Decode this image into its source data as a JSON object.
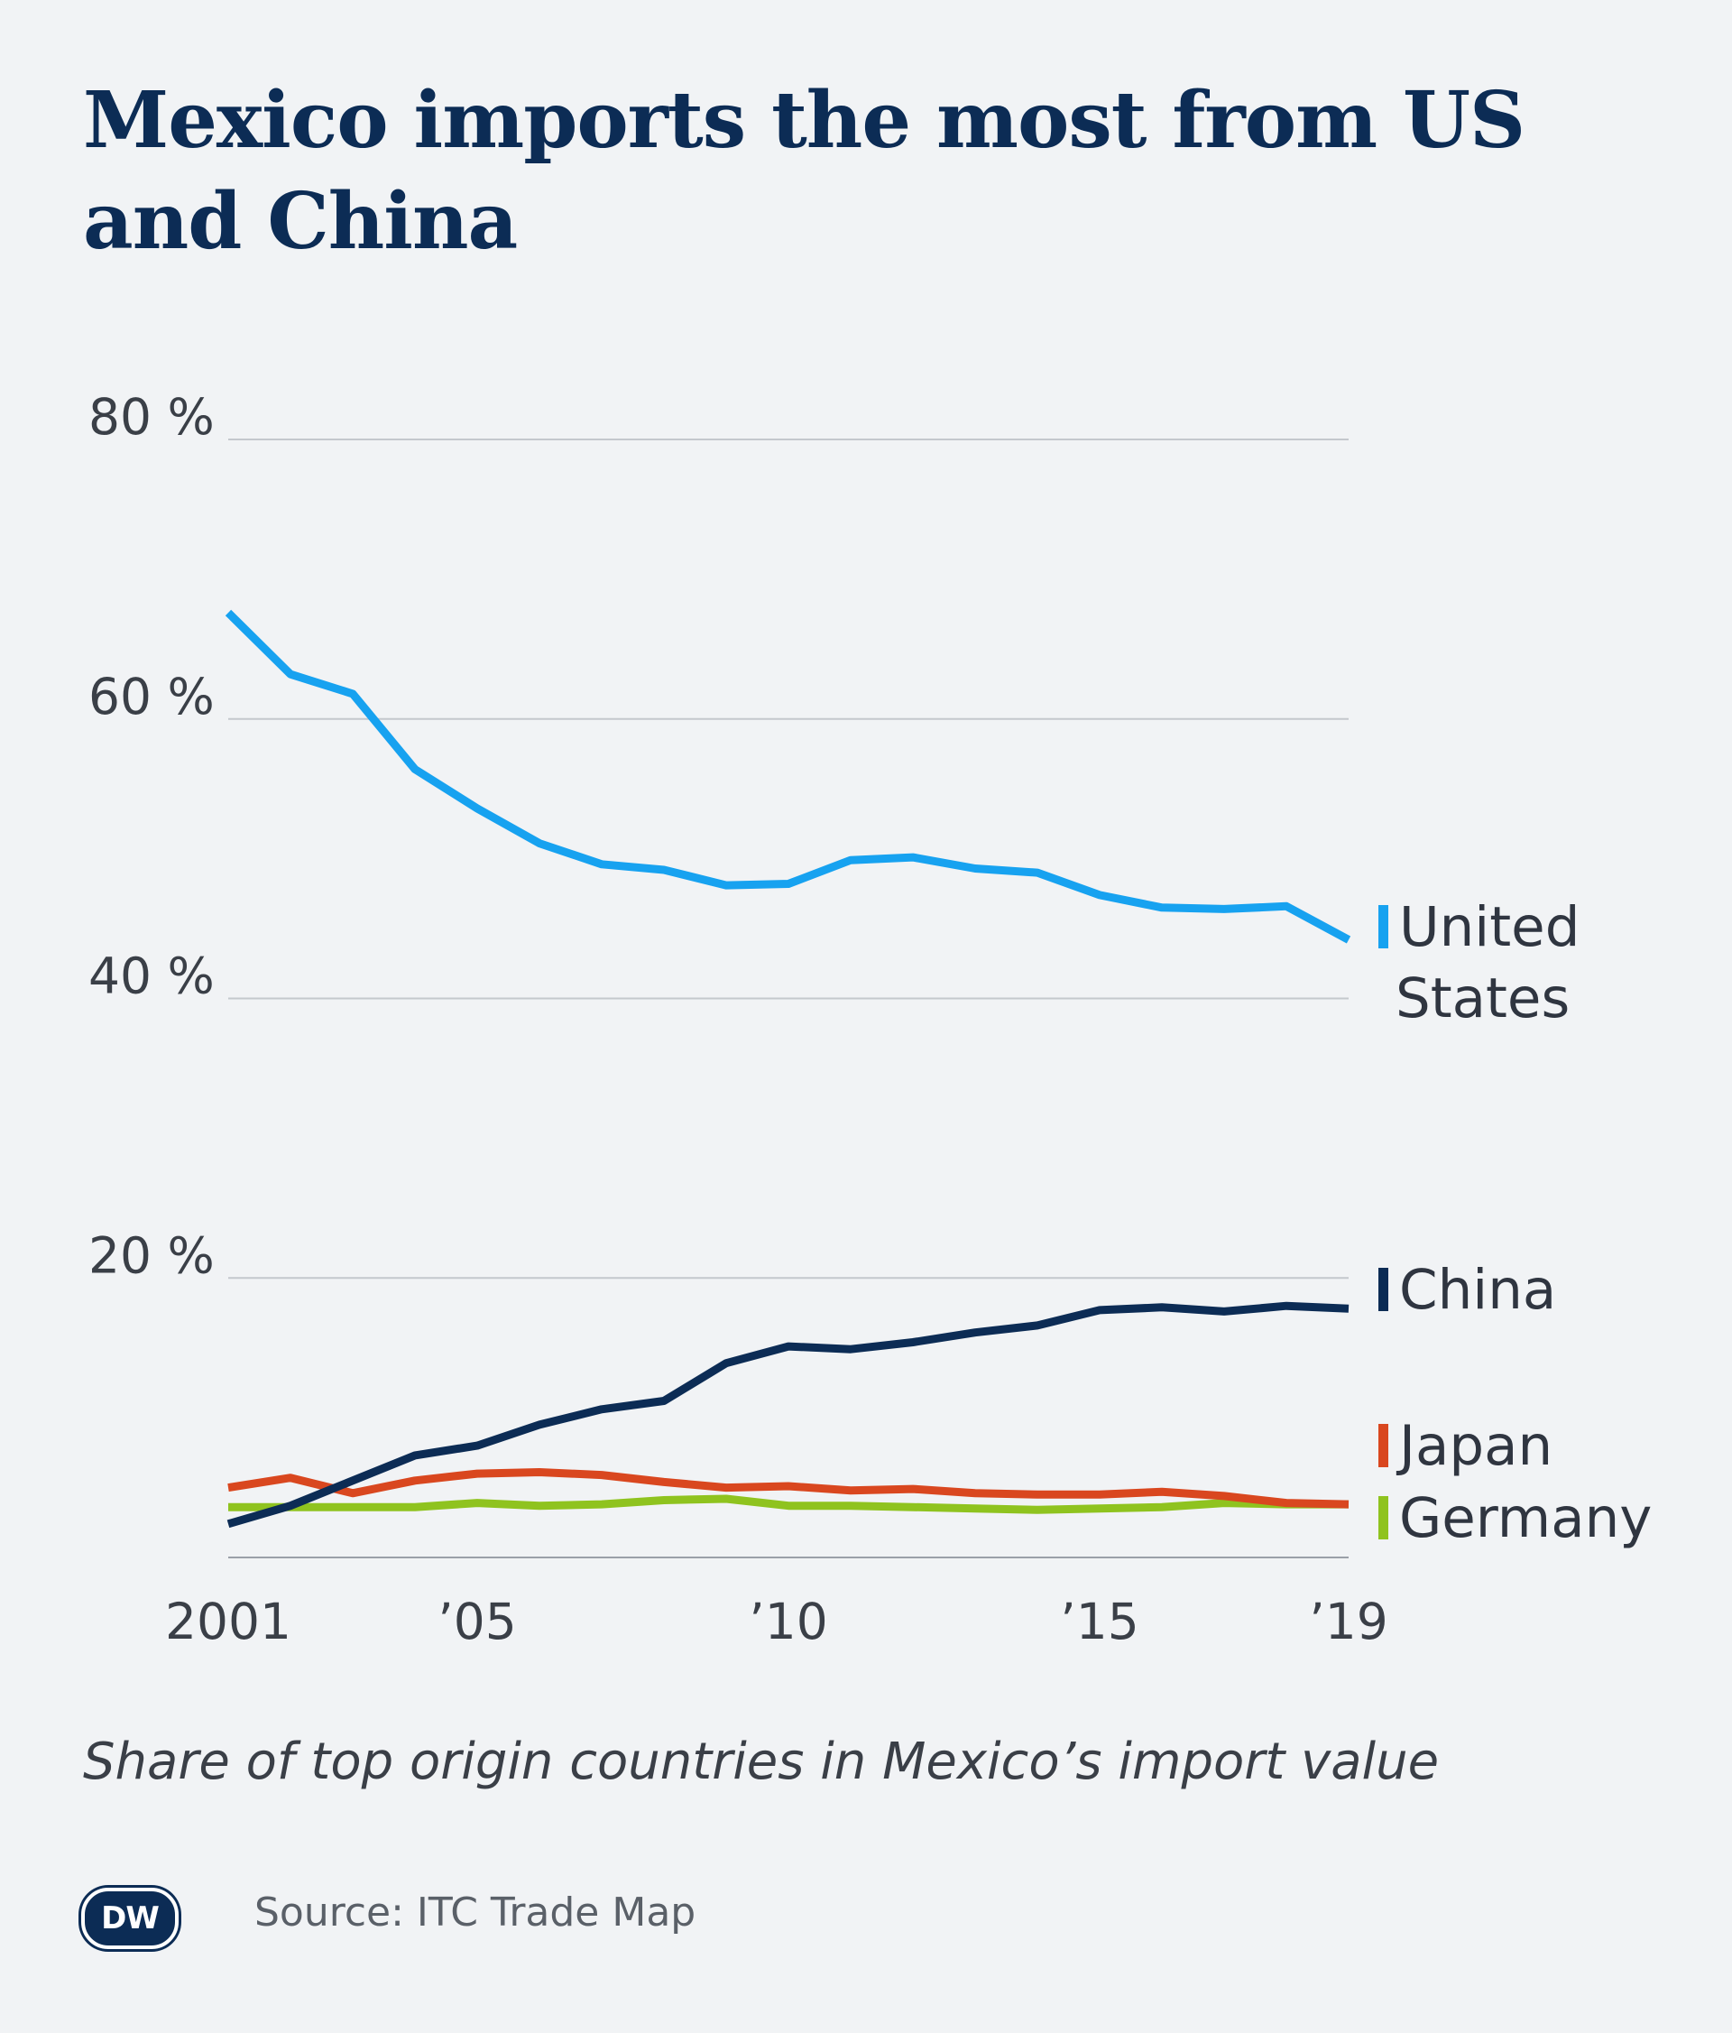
{
  "header": {
    "title": "Mexico imports the most from US and China"
  },
  "footer": {
    "subtitle": "Share of top origin countries in Mexico’s import value",
    "logo_text": "DW",
    "source": "Source: ITC Trade Map"
  },
  "chart_data": {
    "type": "line",
    "title": "Mexico imports the most from US and China",
    "subtitle": "Share of top origin countries in Mexico’s import value",
    "x": [
      2001,
      2002,
      2003,
      2004,
      2005,
      2006,
      2007,
      2008,
      2009,
      2010,
      2011,
      2012,
      2013,
      2014,
      2015,
      2016,
      2017,
      2018,
      2019
    ],
    "x_ticks": [
      {
        "value": 2001,
        "label": "2001"
      },
      {
        "value": 2005,
        "label": "’05"
      },
      {
        "value": 2010,
        "label": "’10"
      },
      {
        "value": 2015,
        "label": "’15"
      },
      {
        "value": 2019,
        "label": "’19"
      }
    ],
    "y_ticks": [
      {
        "value": 20,
        "label": "20 %"
      },
      {
        "value": 40,
        "label": "40 %"
      },
      {
        "value": 60,
        "label": "60 %"
      },
      {
        "value": 80,
        "label": "80 %"
      }
    ],
    "xlim": [
      2001,
      2019
    ],
    "ylim": [
      0,
      80
    ],
    "grid": "horizontal",
    "legend": "inline labels at line ends (right)",
    "series": [
      {
        "name": "United States",
        "label_lines": [
          "United",
          "States"
        ],
        "color": "#17a2f0",
        "values": [
          67.6,
          63.2,
          61.8,
          56.4,
          53.6,
          51.1,
          49.6,
          49.2,
          48.1,
          48.2,
          49.9,
          50.1,
          49.3,
          49.0,
          47.4,
          46.5,
          46.4,
          46.6,
          44.2
        ]
      },
      {
        "name": "China",
        "label_lines": [
          "China"
        ],
        "color": "#0c2c55",
        "values": [
          2.4,
          3.7,
          5.5,
          7.3,
          8.0,
          9.5,
          10.6,
          11.2,
          13.9,
          15.1,
          14.9,
          15.4,
          16.1,
          16.6,
          17.7,
          17.9,
          17.6,
          18.0,
          17.8
        ]
      },
      {
        "name": "Japan",
        "label_lines": [
          "Japan"
        ],
        "color": "#d9471f",
        "values": [
          5.0,
          5.7,
          4.6,
          5.5,
          6.0,
          6.1,
          5.9,
          5.4,
          5.0,
          5.1,
          4.8,
          4.9,
          4.6,
          4.5,
          4.5,
          4.7,
          4.4,
          3.9,
          3.8
        ]
      },
      {
        "name": "Germany",
        "label_lines": [
          "Germany"
        ],
        "color": "#8fc31f",
        "values": [
          3.6,
          3.6,
          3.6,
          3.6,
          3.9,
          3.7,
          3.8,
          4.1,
          4.2,
          3.7,
          3.7,
          3.6,
          3.5,
          3.4,
          3.5,
          3.6,
          3.9,
          3.8,
          3.8
        ]
      }
    ]
  }
}
